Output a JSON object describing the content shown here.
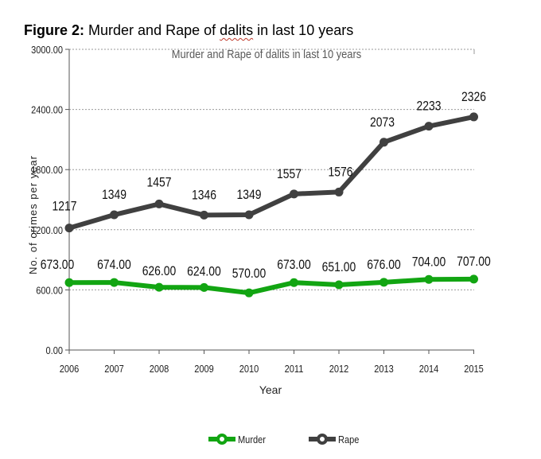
{
  "caption": {
    "label": "Figure 2:",
    "text_before": "Murder and Rape of ",
    "text_flagged": "dalits",
    "text_after": " in last 10 years"
  },
  "colors": {
    "murder": "#12a512",
    "rape": "#404040",
    "grid": "#9a9a9a",
    "axis": "#555555"
  },
  "chart_data": {
    "type": "line",
    "title": "Murder and Rape of dalits in last 10 years",
    "xlabel": "Year",
    "ylabel": "No. of crimes per year",
    "ylim": [
      0,
      3000
    ],
    "yticks": [
      0,
      600,
      1200,
      1800,
      2400,
      3000
    ],
    "ytick_labels": [
      "0.00",
      "600.00",
      "1200.00",
      "1800.00",
      "2400.00",
      "3000.00"
    ],
    "grid": true,
    "legend_position": "bottom",
    "x": [
      "2006",
      "2007",
      "2008",
      "2009",
      "2010",
      "2011",
      "2012",
      "2013",
      "2014",
      "2015"
    ],
    "series": [
      {
        "name": "Murder",
        "values": [
          673,
          674,
          626,
          624,
          570,
          673,
          651,
          676,
          704,
          707
        ],
        "labels": [
          "673.00",
          "674.00",
          "626.00",
          "624.00",
          "570.00",
          "673.00",
          "651.00",
          "676.00",
          "704.00",
          "707.00"
        ]
      },
      {
        "name": "Rape",
        "values": [
          1217,
          1349,
          1457,
          1346,
          1349,
          1557,
          1576,
          2073,
          2233,
          2326
        ],
        "labels": [
          "1217",
          "1349",
          "1457",
          "1346",
          "1349",
          "1557",
          "1576",
          "2073",
          "2233",
          "2326"
        ]
      }
    ]
  }
}
